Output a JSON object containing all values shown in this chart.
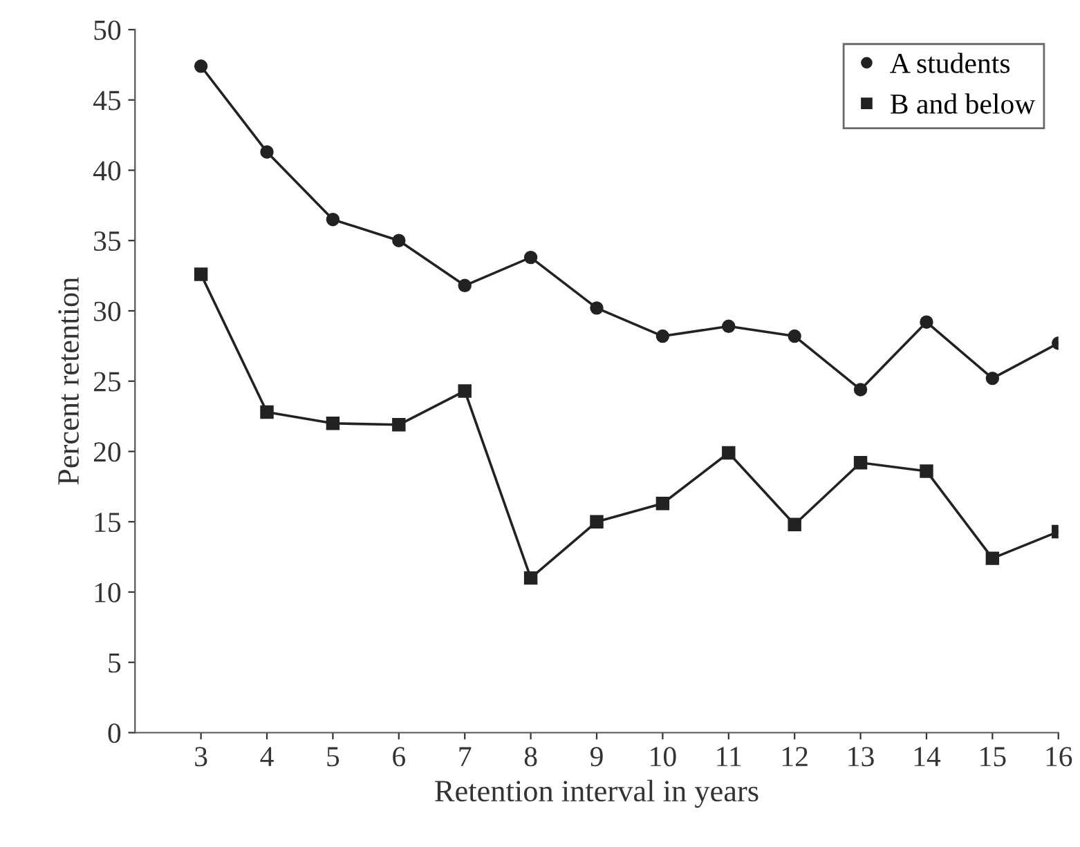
{
  "chart_data": {
    "type": "line",
    "xlabel": "Retention interval in years",
    "ylabel": "Percent retention",
    "x": [
      3,
      4,
      5,
      6,
      7,
      8,
      9,
      10,
      11,
      12,
      13,
      14,
      15,
      16
    ],
    "series": [
      {
        "name": "A students",
        "color": "#222222",
        "marker": "circle",
        "values": [
          47.4,
          41.3,
          36.5,
          35.0,
          31.8,
          33.8,
          30.2,
          28.2,
          28.9,
          28.2,
          24.4,
          29.2,
          25.2,
          27.7
        ]
      },
      {
        "name": "B and below",
        "color": "#222222",
        "marker": "square",
        "values": [
          32.6,
          22.8,
          22.0,
          21.9,
          24.3,
          11.0,
          15.0,
          16.3,
          19.9,
          14.8,
          19.2,
          18.6,
          12.4,
          14.3
        ]
      }
    ],
    "xlim": [
      2,
      16
    ],
    "xticks": [
      3,
      4,
      5,
      6,
      7,
      8,
      9,
      10,
      11,
      12,
      13,
      14,
      15,
      16
    ],
    "ylim": [
      0,
      50
    ],
    "yticks": [
      0,
      5,
      10,
      15,
      20,
      25,
      30,
      35,
      40,
      45,
      50
    ],
    "grid": false,
    "legend": "top right",
    "line_style": "solid"
  }
}
